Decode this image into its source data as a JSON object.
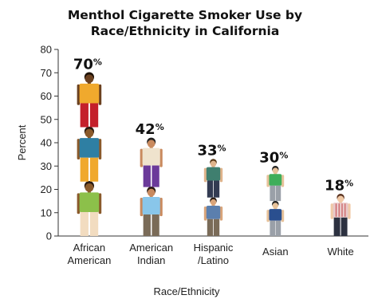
{
  "chart_data": {
    "type": "bar",
    "title_lines": [
      "Menthol Cigarette Smoker Use by",
      "Race/Ethnicity in California"
    ],
    "xlabel": "Race/Ethnicity",
    "ylabel": "Percent",
    "ylim": [
      0,
      80
    ],
    "yticks": [
      0,
      10,
      20,
      30,
      40,
      50,
      60,
      70,
      80
    ],
    "grid": false,
    "categories": [
      [
        "African",
        "American"
      ],
      [
        "American",
        "Indian"
      ],
      [
        "Hispanic",
        "/Latino"
      ],
      [
        "Asian"
      ],
      [
        "White"
      ]
    ],
    "values": [
      70,
      42,
      33,
      30,
      18
    ],
    "value_labels": [
      "70",
      "42",
      "33",
      "30",
      "18"
    ],
    "value_suffix": "%",
    "figures": [
      [
        {
          "skin": "#8a5a2b",
          "hair": "#2a1a10",
          "top": "#8cc04a",
          "bottom": "#f2dcc0"
        },
        {
          "skin": "#8a5a2b",
          "hair": "#2a1a10",
          "top": "#2e7fa3",
          "bottom": "#f0a92d"
        },
        {
          "skin": "#6b4120",
          "hair": "#1e1208",
          "top": "#f0a92d",
          "bottom": "#c4202b"
        }
      ],
      [
        {
          "skin": "#c98a5e",
          "hair": "#2a1a10",
          "top": "#89c6ea",
          "bottom": "#7a6b58"
        },
        {
          "skin": "#c98a5e",
          "hair": "#222222",
          "top": "#efe3cd",
          "bottom": "#6b3a9a"
        }
      ],
      [
        {
          "skin": "#d9a57a",
          "hair": "#2a1a10",
          "top": "#5b7fae",
          "bottom": "#7a6b58"
        },
        {
          "skin": "#e0b48c",
          "hair": "#5a3a1a",
          "top": "#3f7f6f",
          "bottom": "#333b52"
        }
      ],
      [
        {
          "skin": "#e7c29a",
          "hair": "#222222",
          "top": "#2a4f8f",
          "bottom": "#9aa0a8"
        },
        {
          "skin": "#e7c29a",
          "hair": "#222222",
          "top": "#3fae5a",
          "bottom": "#9aa0a8"
        }
      ],
      [
        {
          "skin": "#f0c9a6",
          "hair": "#5a3320",
          "top": "#e8c8c8",
          "bottom": "#2c3140",
          "stripes": "#c4474b"
        }
      ]
    ]
  }
}
